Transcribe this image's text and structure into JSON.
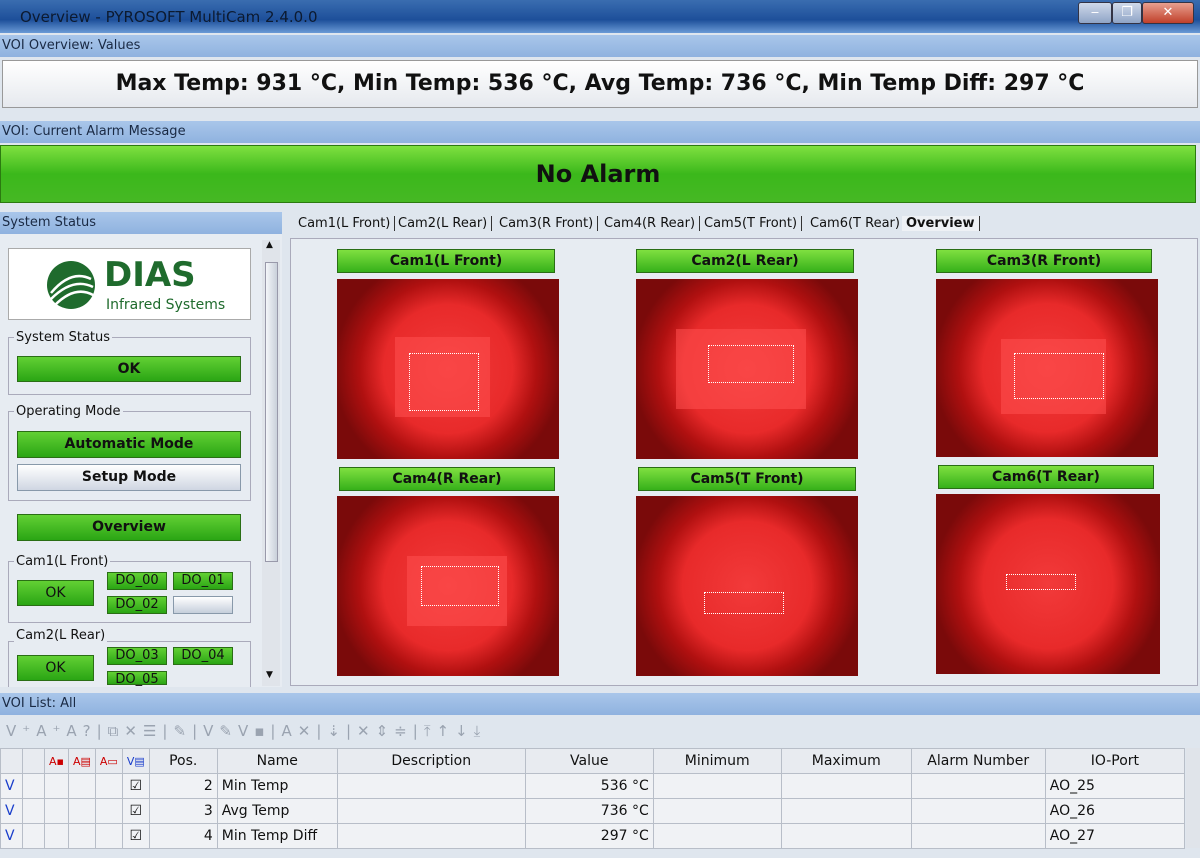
{
  "window": {
    "title": "Overview - PYROSOFT MultiCam 2.4.0.0",
    "minimize": "‒",
    "maximize": "❐",
    "close": "✕"
  },
  "voi_overview": {
    "header": "VOI Overview: Values",
    "text": "Max Temp: 931 °C, Min Temp: 536 °C, Avg Temp: 736 °C, Min Temp Diff: 297 °C"
  },
  "alarm": {
    "header": "VOI: Current Alarm Message",
    "text": "No Alarm"
  },
  "system_status": {
    "header": "System Status",
    "logo": {
      "brand": "DIAS",
      "sub": "Infrared Systems"
    },
    "status_group": "System Status",
    "status_value": "OK",
    "mode_group": "Operating Mode",
    "automatic": "Automatic Mode",
    "setup": "Setup Mode",
    "overview_button": "Overview",
    "cams": [
      {
        "label": "Cam1(L Front)",
        "status": "OK",
        "outputs": [
          "DO_00",
          "DO_01",
          "DO_02"
        ]
      },
      {
        "label": "Cam2(L Rear)",
        "status": "OK",
        "outputs": [
          "DO_03",
          "DO_04",
          "DO_05"
        ]
      }
    ]
  },
  "tabs": [
    {
      "label": "Cam1(L Front)"
    },
    {
      "label": "Cam2(L Rear)"
    },
    {
      "label": "Cam3(R Front)"
    },
    {
      "label": "Cam4(R Rear)"
    },
    {
      "label": "Cam5(T Front)"
    },
    {
      "label": "Cam6(T Rear)"
    },
    {
      "label": "Overview",
      "active": true
    }
  ],
  "cameras": [
    {
      "label": "Cam1(L Front)"
    },
    {
      "label": "Cam2(L Rear)"
    },
    {
      "label": "Cam3(R Front)"
    },
    {
      "label": "Cam4(R Rear)"
    },
    {
      "label": "Cam5(T Front)"
    },
    {
      "label": "Cam6(T Rear)"
    }
  ],
  "voi_list": {
    "header": "VOI List: All",
    "columns": [
      "Pos.",
      "Name",
      "Description",
      "Value",
      "Minimum",
      "Maximum",
      "Alarm Number",
      "IO-Port"
    ],
    "rows": [
      {
        "flag": "V",
        "pos": "2",
        "name": "Min Temp",
        "description": "",
        "value": "536 °C",
        "minimum": "",
        "maximum": "",
        "alarm": "",
        "io": "AO_25"
      },
      {
        "flag": "V",
        "pos": "3",
        "name": "Avg Temp",
        "description": "",
        "value": "736 °C",
        "minimum": "",
        "maximum": "",
        "alarm": "",
        "io": "AO_26"
      },
      {
        "flag": "V",
        "pos": "4",
        "name": "Min Temp Diff",
        "description": "",
        "value": "297 °C",
        "minimum": "",
        "maximum": "",
        "alarm": "",
        "io": "AO_27"
      }
    ]
  }
}
